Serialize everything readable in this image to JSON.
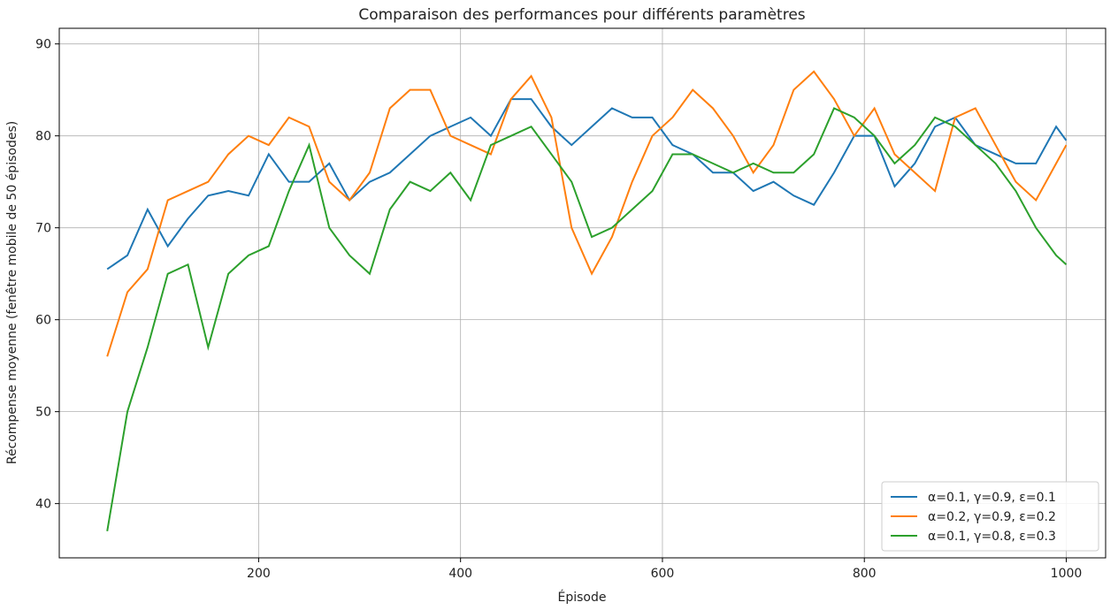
{
  "chart_data": {
    "type": "line",
    "title": "Comparaison des performances pour différents paramètres",
    "x_label": "Épisode",
    "y_label": "Récompense moyenne (fenêtre mobile de 50 épisodes)",
    "x": [
      50,
      70,
      90,
      110,
      130,
      150,
      170,
      190,
      210,
      230,
      250,
      270,
      290,
      310,
      330,
      350,
      370,
      390,
      410,
      430,
      450,
      470,
      490,
      510,
      530,
      550,
      570,
      590,
      610,
      630,
      650,
      670,
      690,
      710,
      730,
      750,
      770,
      790,
      810,
      830,
      850,
      870,
      890,
      910,
      930,
      950,
      970,
      990,
      1000
    ],
    "series": [
      {
        "name": "α=0.1, γ=0.9, ε=0.1",
        "color": "#1f77b4",
        "values": [
          65.5,
          67,
          72,
          68,
          71,
          73.5,
          74,
          73.5,
          78,
          75,
          75,
          77,
          73,
          75,
          76,
          78,
          80,
          81,
          82,
          80,
          84,
          84,
          81,
          79,
          81,
          83,
          82,
          82,
          79,
          78,
          76,
          76,
          74,
          75,
          73.5,
          72.5,
          76,
          80,
          80,
          74.5,
          77,
          81,
          82,
          79,
          78,
          77,
          77,
          81,
          79.5
        ]
      },
      {
        "name": "α=0.2, γ=0.9, ε=0.2",
        "color": "#ff7f0e",
        "values": [
          56,
          63,
          65.5,
          73,
          74,
          75,
          78,
          80,
          79,
          82,
          81,
          75,
          73,
          76,
          83,
          85,
          85,
          80,
          79,
          78,
          84,
          86.5,
          82,
          70,
          65,
          69,
          75,
          80,
          82,
          85,
          83,
          80,
          76,
          79,
          85,
          87,
          84,
          80,
          83,
          78,
          76,
          74,
          82,
          83,
          79,
          75,
          73,
          77,
          79
        ]
      },
      {
        "name": "α=0.1, γ=0.8, ε=0.3",
        "color": "#2ca02c",
        "values": [
          37,
          50,
          57,
          65,
          66,
          57,
          65,
          67,
          68,
          74,
          79,
          70,
          67,
          65,
          72,
          75,
          74,
          76,
          73,
          79,
          80,
          81,
          78,
          75,
          69,
          70,
          72,
          74,
          78,
          78,
          77,
          76,
          77,
          76,
          76,
          78,
          83,
          82,
          80,
          77,
          79,
          82,
          81,
          79,
          77,
          74,
          70,
          67,
          66
        ]
      }
    ],
    "xlim": [
      2.5,
      1039
    ],
    "ylim": [
      34.1,
      91.7
    ],
    "xticks": [
      200,
      400,
      600,
      800,
      1000
    ],
    "yticks": [
      40,
      50,
      60,
      70,
      80,
      90
    ],
    "grid": true,
    "legend": "lower right"
  }
}
